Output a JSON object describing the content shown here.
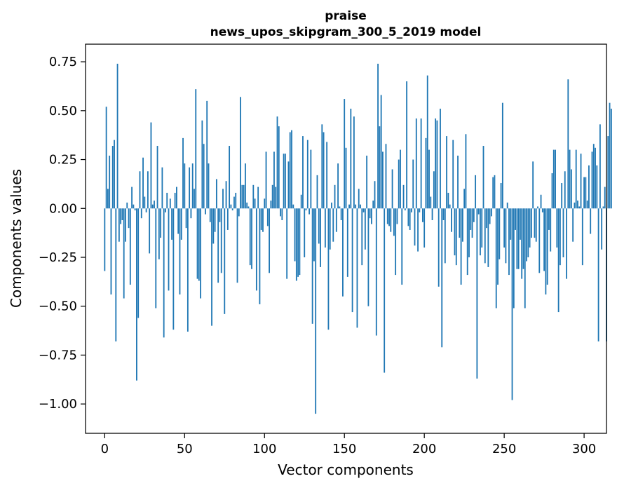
{
  "chart_data": {
    "type": "bar",
    "title": "praise",
    "subtitle": "news_upos_skipgram_300_5_2019 model",
    "xlabel": "Vector components",
    "ylabel": "Components values",
    "xlim": [
      -12,
      314
    ],
    "ylim": [
      -1.15,
      0.84
    ],
    "xticks": [
      0,
      50,
      100,
      150,
      200,
      250,
      300
    ],
    "yticks": [
      -1.0,
      -0.75,
      -0.5,
      -0.25,
      0.0,
      0.25,
      0.5,
      0.75
    ],
    "ytick_labels": [
      "−1.00",
      "−0.75",
      "−0.50",
      "−0.25",
      "0.00",
      "0.25",
      "0.50",
      "0.75"
    ],
    "bar_color": "#1f77b4",
    "values": [
      -0.32,
      0.52,
      0.1,
      0.27,
      -0.44,
      0.32,
      0.35,
      -0.68,
      0.74,
      -0.17,
      -0.08,
      -0.06,
      -0.46,
      -0.17,
      0.03,
      -0.1,
      -0.39,
      0.11,
      0.02,
      -0.01,
      -0.88,
      -0.56,
      0.19,
      -0.05,
      0.26,
      0.06,
      -0.02,
      0.19,
      -0.23,
      0.44,
      0.02,
      0.04,
      -0.51,
      0.32,
      -0.26,
      -0.15,
      0.21,
      -0.66,
      -0.02,
      0.08,
      -0.42,
      0.05,
      -0.16,
      -0.62,
      0.08,
      0.11,
      -0.13,
      -0.44,
      -0.16,
      0.36,
      0.23,
      -0.1,
      -0.63,
      0.21,
      -0.05,
      0.23,
      0.1,
      0.61,
      -0.36,
      -0.37,
      -0.46,
      0.45,
      0.33,
      -0.03,
      0.55,
      0.23,
      -0.07,
      -0.6,
      -0.18,
      -0.12,
      0.15,
      -0.38,
      -0.07,
      -0.33,
      0.1,
      -0.54,
      0.14,
      -0.11,
      0.32,
      0.02,
      -0.01,
      0.06,
      0.08,
      -0.38,
      -0.04,
      0.57,
      0.12,
      0.12,
      0.23,
      0.03,
      0.01,
      -0.29,
      -0.31,
      0.12,
      0.05,
      -0.42,
      0.11,
      -0.49,
      -0.11,
      -0.12,
      0.05,
      0.29,
      -0.09,
      -0.33,
      0.04,
      0.12,
      0.29,
      0.11,
      0.47,
      0.42,
      -0.04,
      -0.06,
      0.28,
      0.28,
      -0.36,
      0.24,
      0.39,
      0.4,
      0.02,
      -0.27,
      -0.37,
      -0.35,
      -0.34,
      0.07,
      0.37,
      -0.25,
      -0.01,
      0.35,
      -0.03,
      0.3,
      -0.59,
      -0.27,
      -1.05,
      0.17,
      -0.18,
      -0.3,
      0.43,
      0.39,
      -0.2,
      0.34,
      -0.62,
      -0.21,
      0.03,
      -0.17,
      0.12,
      -0.12,
      0.23,
      0.01,
      -0.06,
      -0.45,
      0.56,
      0.31,
      -0.35,
      0.02,
      0.51,
      -0.53,
      0.47,
      0.02,
      -0.61,
      0.1,
      0.02,
      -0.29,
      -0.02,
      -0.21,
      0.27,
      -0.5,
      -0.05,
      -0.08,
      0.04,
      0.14,
      -0.65,
      0.74,
      0.42,
      0.58,
      0.29,
      -0.84,
      0.33,
      -0.08,
      -0.09,
      -0.12,
      0.2,
      -0.14,
      -0.34,
      -0.08,
      0.25,
      0.3,
      -0.39,
      0.12,
      -0.01,
      0.65,
      -0.09,
      -0.11,
      -0.02,
      0.25,
      -0.19,
      0.46,
      -0.22,
      -0.02,
      0.46,
      -0.07,
      -0.2,
      0.36,
      0.68,
      0.3,
      0.06,
      -0.06,
      0.19,
      0.46,
      0.45,
      -0.4,
      0.51,
      -0.71,
      -0.06,
      -0.28,
      0.37,
      0.08,
      0.02,
      -0.12,
      0.35,
      -0.24,
      -0.29,
      0.27,
      -0.15,
      -0.39,
      -0.17,
      0.1,
      0.38,
      -0.34,
      -0.25,
      -0.11,
      -0.15,
      -0.07,
      0.17,
      -0.87,
      -0.03,
      -0.24,
      -0.2,
      0.32,
      -0.28,
      -0.1,
      -0.3,
      -0.08,
      -0.04,
      0.16,
      0.17,
      -0.51,
      -0.39,
      -0.26,
      0.13,
      0.54,
      -0.2,
      -0.28,
      0.03,
      -0.34,
      -0.16,
      -0.98,
      -0.51,
      -0.11,
      -0.31,
      -0.31,
      -0.16,
      -0.36,
      -0.31,
      -0.51,
      -0.27,
      -0.25,
      -0.2,
      -0.15,
      0.24,
      -0.15,
      -0.17,
      0.01,
      -0.33,
      0.07,
      -0.02,
      -0.32,
      -0.44,
      -0.39,
      -0.11,
      -0.22,
      0.18,
      0.3,
      0.3,
      -0.2,
      -0.53,
      -0.29,
      0.13,
      -0.25,
      0.19,
      -0.36,
      0.66,
      0.3,
      0.2,
      -0.17,
      0.03,
      0.3,
      0.04,
      0.01,
      0.28,
      -0.29,
      0.16,
      0.16,
      0.04,
      0.22,
      -0.13,
      0.29,
      0.33,
      0.31,
      0.22,
      -0.68,
      0.43,
      -0.21,
      0.01,
      0.11,
      -0.68,
      0.37,
      0.54,
      0.51
    ]
  }
}
